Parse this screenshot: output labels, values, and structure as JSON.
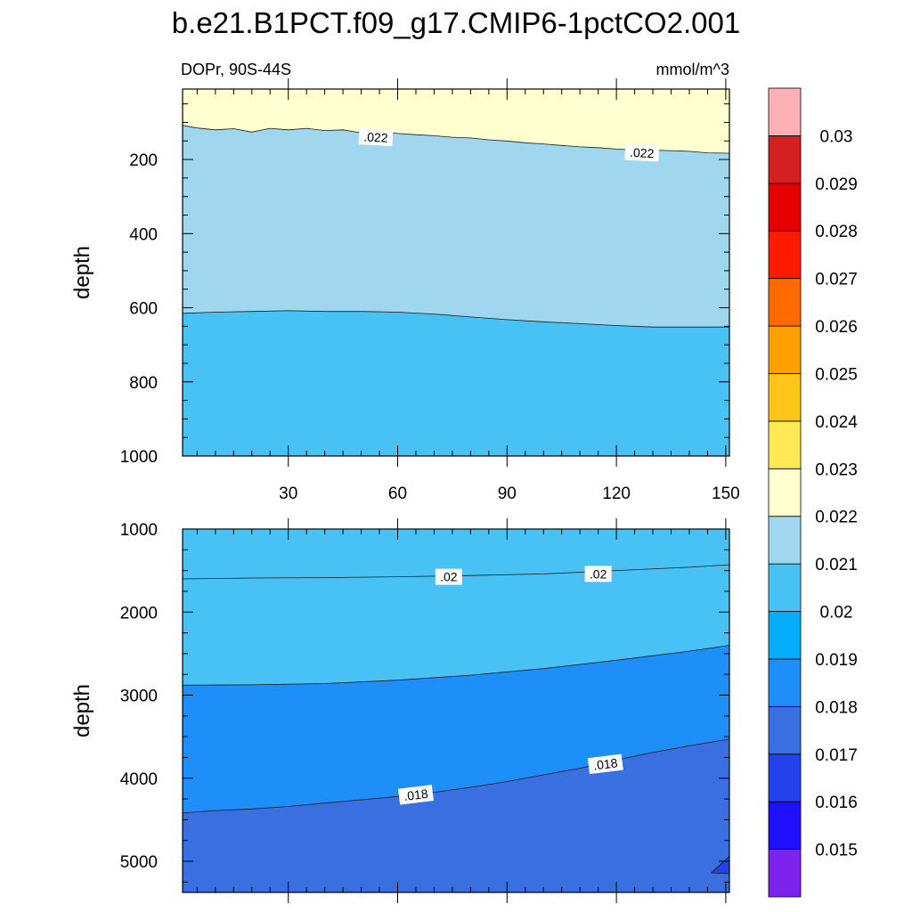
{
  "title": "b.e21.B1PCT.f09_g17.CMIP6-1pctCO2.001",
  "chart_data": {
    "type": "contour",
    "variable": "DOPr",
    "region": "90S-44S",
    "left_label": "DOPr, 90S-44S",
    "units": "mmol/m^3",
    "x": {
      "range": [
        1,
        151
      ],
      "ticks": [
        30,
        60,
        90,
        120,
        150
      ]
    },
    "colorbar": {
      "levels": [
        0.015,
        0.016,
        0.017,
        0.018,
        0.019,
        0.02,
        0.021,
        0.022,
        0.023,
        0.024,
        0.025,
        0.026,
        0.027,
        0.028,
        0.029,
        0.03
      ],
      "tick_labels": [
        "0.015",
        "0.016",
        "0.017",
        "0.018",
        "0.019",
        "0.02",
        "0.021",
        "0.022",
        "0.023",
        "0.024",
        "0.025",
        "0.026",
        "0.027",
        "0.028",
        "0.029",
        "0.03"
      ],
      "colors": [
        "#7e22ee",
        "#1f0fff",
        "#2342ee",
        "#3a6fe2",
        "#1e8ff8",
        "#07acfb",
        "#48c2f5",
        "#a0d6ee",
        "#ffffd0",
        "#ffe855",
        "#ffc41a",
        "#ff9f00",
        "#ff6a00",
        "#ff1a00",
        "#e60000",
        "#d42020",
        "#ffb0b4"
      ]
    },
    "panels": [
      {
        "name": "upper",
        "ylabel": "depth",
        "ylim": [
          1000,
          0
        ],
        "y_data_min": 10,
        "yticks": [
          200,
          400,
          600,
          800,
          1000
        ],
        "fills": [
          {
            "value_band": "0.022-0.023",
            "color": "#ffffd0",
            "top": "panel-top"
          },
          {
            "value_band": "0.021-0.022",
            "color": "#a0d6ee",
            "top": "contour_0.022"
          },
          {
            "value_band": "0.020-0.021",
            "color": "#48c2f5",
            "top": "contour_0.021"
          }
        ],
        "contours": [
          {
            "level": 0.022,
            "label": ".022",
            "x": [
              1,
              5,
              10,
              15,
              20,
              25,
              30,
              35,
              40,
              45,
              50,
              55,
              60,
              65,
              70,
              75,
              80,
              85,
              90,
              95,
              100,
              105,
              110,
              115,
              120,
              125,
              130,
              135,
              140,
              145,
              151
            ],
            "depth": [
              108,
              115,
              120,
              117,
              126,
              116,
              120,
              116,
              122,
              120,
              128,
              125,
              130,
              133,
              136,
              140,
              142,
              147,
              150,
              155,
              158,
              162,
              166,
              168,
              172,
              174,
              175,
              176,
              178,
              182,
              183
            ],
            "label_positions": [
              [
                54,
                140
              ],
              [
                127,
                182
              ]
            ]
          },
          {
            "level": 0.021,
            "label": "",
            "x": [
              1,
              10,
              20,
              30,
              40,
              50,
              60,
              70,
              80,
              90,
              100,
              110,
              120,
              130,
              140,
              151
            ],
            "depth": [
              615,
              612,
              610,
              608,
              610,
              610,
              612,
              617,
              625,
              632,
              638,
              643,
              648,
              652,
              652,
              652
            ],
            "label_positions": []
          }
        ]
      },
      {
        "name": "lower",
        "ylabel": "depth",
        "ylim": [
          1000,
          5375
        ],
        "yticks": [
          1000,
          2000,
          3000,
          4000,
          5000
        ],
        "fills": [
          {
            "value_band": "0.020-0.021",
            "color": "#48c2f5",
            "top": "panel-top"
          },
          {
            "value_band": "0.019-0.020",
            "color": "#07acfb",
            "top": "contour_0.020"
          },
          {
            "value_band": "0.018-0.019",
            "color": "#1e8ff8",
            "top": "contour_0.019"
          },
          {
            "value_band": "0.017-0.018",
            "color": "#3a6fe2",
            "top": "contour_0.018"
          },
          {
            "value_band": "0.016-0.017",
            "color": "#2342ee",
            "top": "corner-patch"
          }
        ],
        "contours": [
          {
            "level": 0.02,
            "label": ".02",
            "x": [
              1,
              20,
              40,
              60,
              80,
              100,
              120,
              140,
              151
            ],
            "depth": [
              1600,
              1590,
              1585,
              1575,
              1560,
              1540,
              1500,
              1460,
              1430
            ],
            "label_positions": [
              [
                74,
                1575
              ],
              [
                115,
                1540
              ]
            ]
          },
          {
            "level": 0.019,
            "label": "",
            "x": [
              1,
              20,
              40,
              60,
              80,
              100,
              120,
              140,
              151
            ],
            "depth": [
              2880,
              2875,
              2860,
              2820,
              2760,
              2680,
              2580,
              2470,
              2400
            ],
            "label_positions": []
          },
          {
            "level": 0.018,
            "label": ".018",
            "x": [
              1,
              10,
              20,
              30,
              40,
              50,
              60,
              70,
              80,
              90,
              100,
              110,
              120,
              130,
              140,
              151
            ],
            "depth": [
              4420,
              4390,
              4370,
              4340,
              4300,
              4260,
              4220,
              4170,
              4110,
              4040,
              3960,
              3880,
              3780,
              3690,
              3610,
              3530
            ],
            "label_positions": [
              [
                65,
                4200
              ],
              [
                117,
                3830
              ]
            ]
          },
          {
            "level": 0.017,
            "label": "",
            "x": [
              146,
              151,
              151,
              146
            ],
            "depth": [
              5140,
              4940,
              5150,
              5140
            ],
            "label_positions": []
          }
        ]
      }
    ]
  }
}
